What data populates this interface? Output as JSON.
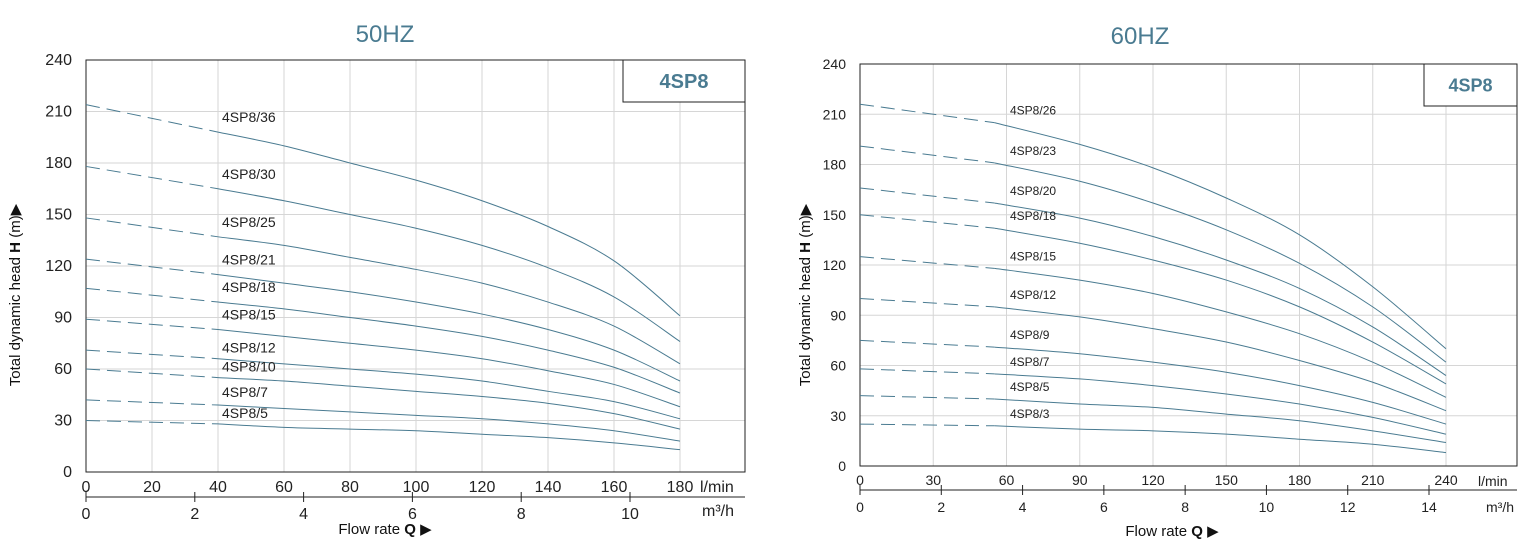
{
  "chart_data": [
    {
      "type": "line",
      "title": "50HZ",
      "badge": "4SP8",
      "ylabel_parts": [
        "Total dynamic head ",
        "H",
        " (m)",
        "▶"
      ],
      "xlabel_parts": [
        "Flow rate ",
        "Q",
        " ▶"
      ],
      "x_unit": "l/min",
      "x2_unit": "m³/h",
      "x_ticks": [
        0,
        20,
        40,
        60,
        80,
        100,
        120,
        140,
        160,
        180
      ],
      "x2_ticks": [
        0,
        2,
        4,
        6,
        8,
        10
      ],
      "y_ticks": [
        0,
        30,
        60,
        90,
        120,
        150,
        180,
        210,
        240
      ],
      "xlim": [
        0,
        198
      ],
      "ylim": [
        0,
        240
      ],
      "dash_until": 40,
      "series": [
        {
          "name": "4SP8/36",
          "x": [
            0,
            40,
            60,
            80,
            100,
            120,
            140,
            160,
            180
          ],
          "y": [
            214,
            198,
            190,
            180,
            170,
            158,
            143,
            123,
            91
          ]
        },
        {
          "name": "4SP8/30",
          "x": [
            0,
            40,
            60,
            80,
            100,
            120,
            140,
            160,
            180
          ],
          "y": [
            178,
            165,
            158,
            150,
            142,
            132,
            119,
            102,
            76
          ]
        },
        {
          "name": "4SP8/25",
          "x": [
            0,
            40,
            60,
            80,
            100,
            120,
            140,
            160,
            180
          ],
          "y": [
            148,
            137,
            132,
            125,
            118,
            110,
            99,
            85,
            63
          ]
        },
        {
          "name": "4SP8/21",
          "x": [
            0,
            40,
            60,
            80,
            100,
            120,
            140,
            160,
            180
          ],
          "y": [
            124,
            115,
            110,
            105,
            99,
            92,
            83,
            71,
            53
          ]
        },
        {
          "name": "4SP8/18",
          "x": [
            0,
            40,
            60,
            80,
            100,
            120,
            140,
            160,
            180
          ],
          "y": [
            107,
            99,
            95,
            90,
            85,
            79,
            71,
            61,
            46
          ]
        },
        {
          "name": "4SP8/15",
          "x": [
            0,
            40,
            60,
            80,
            100,
            120,
            140,
            160,
            180
          ],
          "y": [
            89,
            83,
            79,
            75,
            71,
            66,
            59,
            51,
            38
          ]
        },
        {
          "name": "4SP8/12",
          "x": [
            0,
            40,
            60,
            80,
            100,
            120,
            140,
            160,
            180
          ],
          "y": [
            71,
            66,
            63,
            60,
            57,
            53,
            47,
            41,
            31
          ]
        },
        {
          "name": "4SP8/10",
          "x": [
            0,
            40,
            60,
            80,
            100,
            120,
            140,
            160,
            180
          ],
          "y": [
            60,
            55,
            53,
            50,
            47,
            44,
            40,
            34,
            25
          ]
        },
        {
          "name": "4SP8/7",
          "x": [
            0,
            40,
            60,
            80,
            100,
            120,
            140,
            160,
            180
          ],
          "y": [
            42,
            39,
            37,
            35,
            33,
            31,
            28,
            24,
            18
          ]
        },
        {
          "name": "4SP8/5",
          "x": [
            0,
            40,
            60,
            80,
            100,
            120,
            140,
            160,
            180
          ],
          "y": [
            30,
            28,
            26,
            25,
            24,
            22,
            20,
            17,
            13
          ]
        }
      ]
    },
    {
      "type": "line",
      "title": "60HZ",
      "badge": "4SP8",
      "ylabel_parts": [
        "Total dynamic head ",
        "H",
        " (m)",
        "▶"
      ],
      "xlabel_parts": [
        "Flow rate ",
        "Q",
        " ▶"
      ],
      "x_unit": "l/min",
      "x2_unit": "m³/h",
      "x_ticks": [
        0,
        30,
        60,
        90,
        120,
        150,
        180,
        210,
        240
      ],
      "x2_ticks": [
        0,
        2,
        4,
        6,
        8,
        10,
        12,
        14
      ],
      "y_ticks": [
        0,
        30,
        60,
        90,
        120,
        150,
        180,
        210,
        240
      ],
      "xlim": [
        0,
        264
      ],
      "ylim": [
        0,
        240
      ],
      "dash_until": 55,
      "series": [
        {
          "name": "4SP8/26",
          "x": [
            0,
            55,
            90,
            120,
            150,
            180,
            210,
            240
          ],
          "y": [
            216,
            205,
            192,
            178,
            160,
            138,
            107,
            70
          ]
        },
        {
          "name": "4SP8/23",
          "x": [
            0,
            55,
            90,
            120,
            150,
            180,
            210,
            240
          ],
          "y": [
            191,
            181,
            170,
            157,
            141,
            121,
            95,
            62
          ]
        },
        {
          "name": "4SP8/20",
          "x": [
            0,
            55,
            90,
            120,
            150,
            180,
            210,
            240
          ],
          "y": [
            166,
            157,
            148,
            137,
            123,
            106,
            83,
            54
          ]
        },
        {
          "name": "4SP8/18",
          "x": [
            0,
            55,
            90,
            120,
            150,
            180,
            210,
            240
          ],
          "y": [
            150,
            142,
            133,
            123,
            111,
            95,
            74,
            49
          ]
        },
        {
          "name": "4SP8/15",
          "x": [
            0,
            55,
            90,
            120,
            150,
            180,
            210,
            240
          ],
          "y": [
            125,
            118,
            111,
            103,
            92,
            79,
            62,
            41
          ]
        },
        {
          "name": "4SP8/12",
          "x": [
            0,
            55,
            90,
            120,
            150,
            180,
            210,
            240
          ],
          "y": [
            100,
            95,
            89,
            82,
            74,
            63,
            50,
            33
          ]
        },
        {
          "name": "4SP8/9",
          "x": [
            0,
            55,
            90,
            120,
            150,
            180,
            210,
            240
          ],
          "y": [
            75,
            71,
            67,
            62,
            56,
            48,
            38,
            25
          ]
        },
        {
          "name": "4SP8/7",
          "x": [
            0,
            55,
            90,
            120,
            150,
            180,
            210,
            240
          ],
          "y": [
            58,
            55,
            52,
            48,
            43,
            37,
            29,
            19
          ]
        },
        {
          "name": "4SP8/5",
          "x": [
            0,
            55,
            90,
            120,
            150,
            180,
            210,
            240
          ],
          "y": [
            42,
            40,
            37,
            35,
            31,
            27,
            21,
            14
          ]
        },
        {
          "name": "4SP8/3",
          "x": [
            0,
            55,
            90,
            120,
            150,
            180,
            210,
            240
          ],
          "y": [
            25,
            24,
            22,
            21,
            19,
            16,
            13,
            8
          ]
        }
      ]
    }
  ]
}
